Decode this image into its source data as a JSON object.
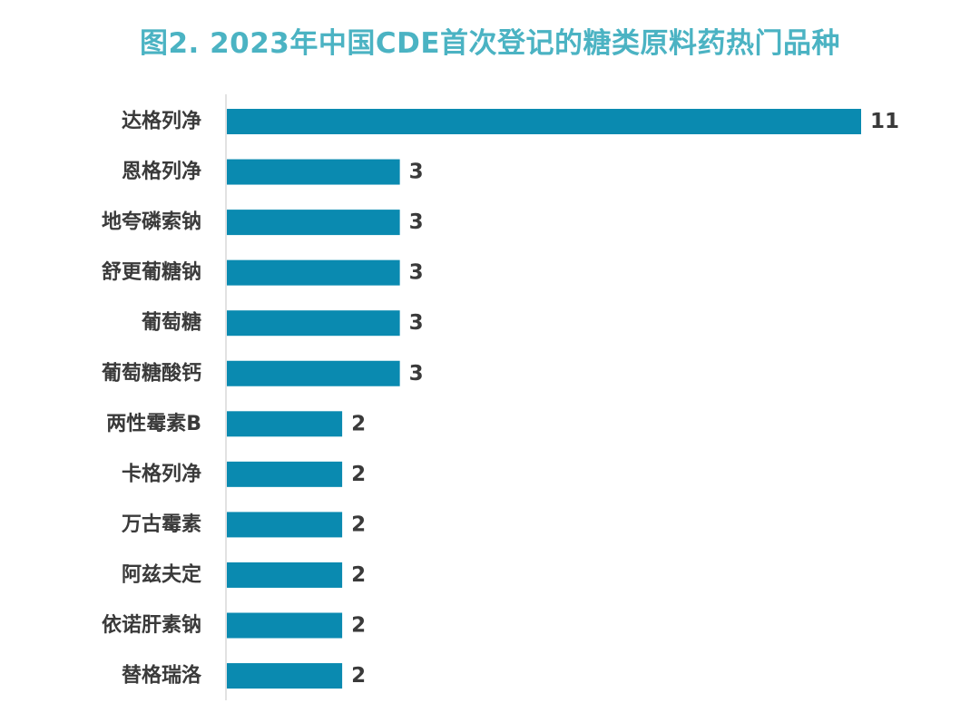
{
  "chart_data": {
    "type": "bar",
    "orientation": "horizontal",
    "title": "图2. 2023年中国CDE首次登记的糖类原料药热门品种",
    "categories": [
      "达格列净",
      "恩格列净",
      "地夸磷索钠",
      "舒更葡糖钠",
      "葡萄糖",
      "葡萄糖酸钙",
      "两性霉素B",
      "卡格列净",
      "万古霉素",
      "阿兹夫定",
      "依诺肝素钠",
      "替格瑞洛"
    ],
    "values": [
      11,
      3,
      3,
      3,
      3,
      3,
      2,
      2,
      2,
      2,
      2,
      2
    ],
    "xlim": [
      0,
      11
    ],
    "grid": false,
    "legend": "none",
    "data_labels": true,
    "colors": {
      "bar": "#0a8ab0",
      "title": "#4bb3c3",
      "text": "#3a3a3a",
      "axis": "#d9d9d9"
    }
  }
}
